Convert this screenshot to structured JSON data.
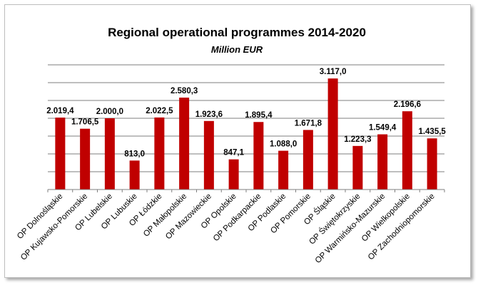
{
  "chart_data": {
    "type": "bar",
    "title": "Regional operational programmes  2014-2020",
    "subtitle": "Million EUR",
    "xlabel": "",
    "ylabel": "",
    "ylim": [
      0,
      3500
    ],
    "grid": true,
    "legend": "none",
    "bar_color": "#c00000",
    "categories": [
      "OP Dolnośląskie",
      "OP Kujawsko-Pomorskie",
      "OP Lubelskie",
      "OP Lubuskie",
      "OP Łódzkie",
      "OP Małopolskie",
      "OP Mazowieckie",
      "OP Opolskie",
      "OP Podkarpackie",
      "OP Podlaskie",
      "OP Pomorskie",
      "OP Śląskie",
      "OP  Świętokrzyskie",
      "OP Warmińsko-Mazurskie",
      "OP Wielkopolskie",
      "OP Zachodniopomorskie"
    ],
    "values": [
      2019.4,
      1706.5,
      2000.0,
      813.0,
      2022.5,
      2580.3,
      1923.6,
      847.1,
      1895.4,
      1088.0,
      1671.8,
      3117.0,
      1223.3,
      1549.4,
      2196.6,
      1435.5
    ],
    "data_labels": [
      "2.019,4",
      "1.706,5",
      "2.000,0",
      "813,0",
      "2.022,5",
      "2.580,3",
      "1.923,6",
      "847,1",
      "1.895,4",
      "1.088,0",
      "1.671,8",
      "3.117,0",
      "1.223,3",
      "1.549,4",
      "2.196,6",
      "1.435,5"
    ]
  }
}
